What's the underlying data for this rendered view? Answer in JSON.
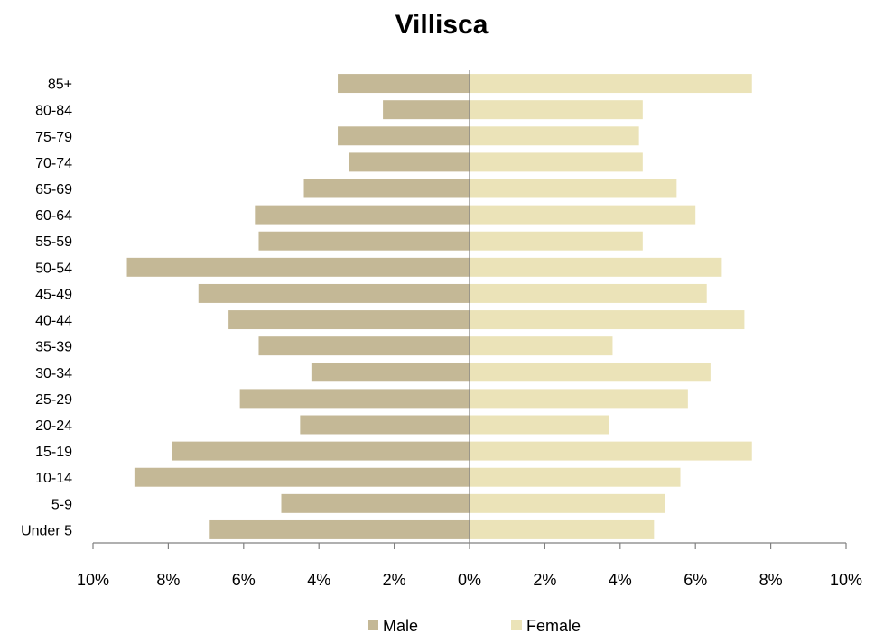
{
  "chart_data": {
    "type": "bar",
    "orientation": "horizontal",
    "title": "Villisca",
    "categories": [
      "Under 5",
      "5-9",
      "10-14",
      "15-19",
      "20-24",
      "25-29",
      "30-34",
      "35-39",
      "40-44",
      "45-49",
      "50-54",
      "55-59",
      "60-64",
      "65-69",
      "70-74",
      "75-79",
      "80-84",
      "85+"
    ],
    "series": [
      {
        "name": "Male",
        "color": "#c4b896",
        "values": [
          6.9,
          5.0,
          8.9,
          7.9,
          4.5,
          6.1,
          4.2,
          5.6,
          6.4,
          7.2,
          9.1,
          5.6,
          5.7,
          4.4,
          3.2,
          3.5,
          2.3,
          3.5
        ]
      },
      {
        "name": "Female",
        "color": "#ebe3b8",
        "values": [
          4.9,
          5.2,
          5.6,
          7.5,
          3.7,
          5.8,
          6.4,
          3.8,
          7.3,
          6.3,
          6.7,
          4.6,
          6.0,
          5.5,
          4.6,
          4.5,
          4.6,
          7.5
        ]
      }
    ],
    "xlim": [
      -10,
      10
    ],
    "x_ticks": [
      -10,
      -8,
      -6,
      -4,
      -2,
      0,
      2,
      4,
      6,
      8,
      10
    ],
    "x_tick_labels": [
      "10%",
      "8%",
      "6%",
      "4%",
      "2%",
      "0%",
      "2%",
      "4%",
      "6%",
      "8%",
      "10%"
    ],
    "xlabel": "",
    "ylabel": "",
    "grid": false,
    "legend_position": "bottom"
  }
}
